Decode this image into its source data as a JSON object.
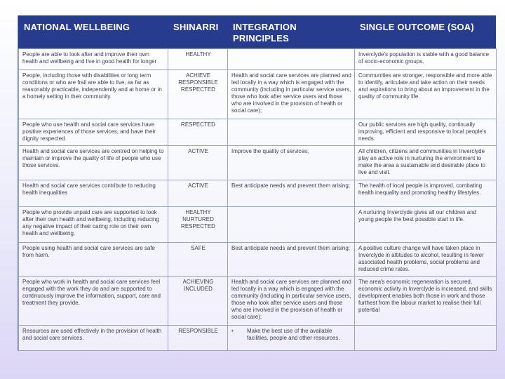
{
  "headers": {
    "wellbeing": "NATIONAL WELLBEING",
    "shinarri": "SHINARRI",
    "integration": "INTEGRATION PRINCIPLES",
    "soa": "SINGLE OUTCOME  (SOA)"
  },
  "rows": [
    {
      "wellbeing": "People are able to look after and improve their own health and wellbeing and live in good health for longer",
      "shinarri": "HEALTHY",
      "integration": "",
      "soa": "Inverclyde's population is stable with a good balance of socio-economic groups."
    },
    {
      "wellbeing": "People, including those with disabilities or long term conditions or who are frail are able to live, as far as reasonably practicable, independently and at home or in a homely setting in their community.",
      "shinarri": "ACHIEVE RESPONSIBLE RESPECTED",
      "integration": "Health and social care services are planned and led locally in a way which is engaged with the community (including in particular service users, those who look after service users and those who are involved in the provision of health or social care);",
      "soa": "Communities are stronger, responsible and more able to identify, articulate and take action on their needs and aspirations to bring about an improvement in the quality of community life."
    },
    {
      "wellbeing": "People who use health and social care services have positive experiences of those services, and have their dignity respected.",
      "shinarri": "RESPECTED",
      "integration": "",
      "soa": "Our public services are high quality, continually improving, efficient and responsive to local people's needs."
    },
    {
      "wellbeing": "Health and social care services are centred on helping to maintain or improve the quality of life of people who use those services.",
      "shinarri": "ACTIVE",
      "integration": "Improve the quality of services;",
      "soa": "All children, citizens and communities in Inverclyde play an active role in nurturing the environment to make the area a sustainable and desirable place to live and visit."
    },
    {
      "wellbeing": "Health and social care services contribute to reducing health inequalities",
      "shinarri": "ACTIVE",
      "integration": "Best anticipate needs and prevent them arising;",
      "soa": "The health of local people is improved, combating health inequality and promoting healthy lifestyles."
    },
    {
      "wellbeing": "People who provide unpaid care are supported to look after their own health and wellbeing, including reducing any negative impact of their caring role on their own health and wellbeing.",
      "shinarri": "HEALTHY NURTURED RESPECTED",
      "integration": "",
      "soa": "A nurturing Inverclyde gives all our children and young people the best possible start in life."
    },
    {
      "wellbeing": "People using health and social care services are safe from harm.",
      "shinarri": "SAFE",
      "integration": "Best anticipate needs and prevent them arising;",
      "soa": "A positive culture change will have taken place in Inverclyde in attitudes to alcohol, resulting in fewer associated health problems, social problems and reduced crime rates."
    },
    {
      "wellbeing": "People who work in health and social care services feel engaged with the work they do and are supported to continuously improve the information, support, care and treatment they provide.",
      "shinarri": "ACHIEVING INCLUDED",
      "integration": "Health and social care services are planned and led locally in a way which is engaged with the community (including in particular service users, those who look after service users and those who are involved in the provision of health or social care);",
      "soa": "The area's economic regeneration is secured, economic activity in Inverclyde is increased, and skills development enables both those in work and those furthest from the labour market to realise their full potential"
    },
    {
      "wellbeing": "Resources are used effectively in the provision of health and social care services.",
      "shinarri": "RESPONSIBLE",
      "integration_bullet": "•",
      "integration": "Make the best use of the available facilities, people and other resources.",
      "soa": ""
    }
  ]
}
